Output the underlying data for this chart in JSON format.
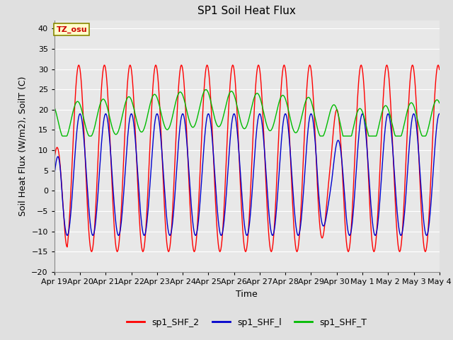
{
  "title": "SP1 Soil Heat Flux",
  "xlabel": "Time",
  "ylabel": "Soil Heat Flux (W/m2), SoilT (C)",
  "ylim": [
    -20,
    42
  ],
  "yticks": [
    -20,
    -15,
    -10,
    -5,
    0,
    5,
    10,
    15,
    20,
    25,
    30,
    35,
    40
  ],
  "fig_bg_color": "#e0e0e0",
  "plot_bg_color": "#e8e8e8",
  "grid_color": "#ffffff",
  "tz_label": "TZ_osu",
  "legend": [
    "sp1_SHF_2",
    "sp1_SHF_l",
    "sp1_SHF_T"
  ],
  "line_colors": [
    "#ff0000",
    "#0000cc",
    "#00bb00"
  ],
  "x_tick_labels": [
    "Apr 19",
    "Apr 20",
    "Apr 21",
    "Apr 22",
    "Apr 23",
    "Apr 24",
    "Apr 25",
    "Apr 26",
    "Apr 27",
    "Apr 28",
    "Apr 29",
    "Apr 30",
    "May 1",
    "May 2",
    "May 3",
    "May 4"
  ],
  "n_days": 15,
  "title_fontsize": 11,
  "axis_label_fontsize": 9,
  "tick_fontsize": 8
}
